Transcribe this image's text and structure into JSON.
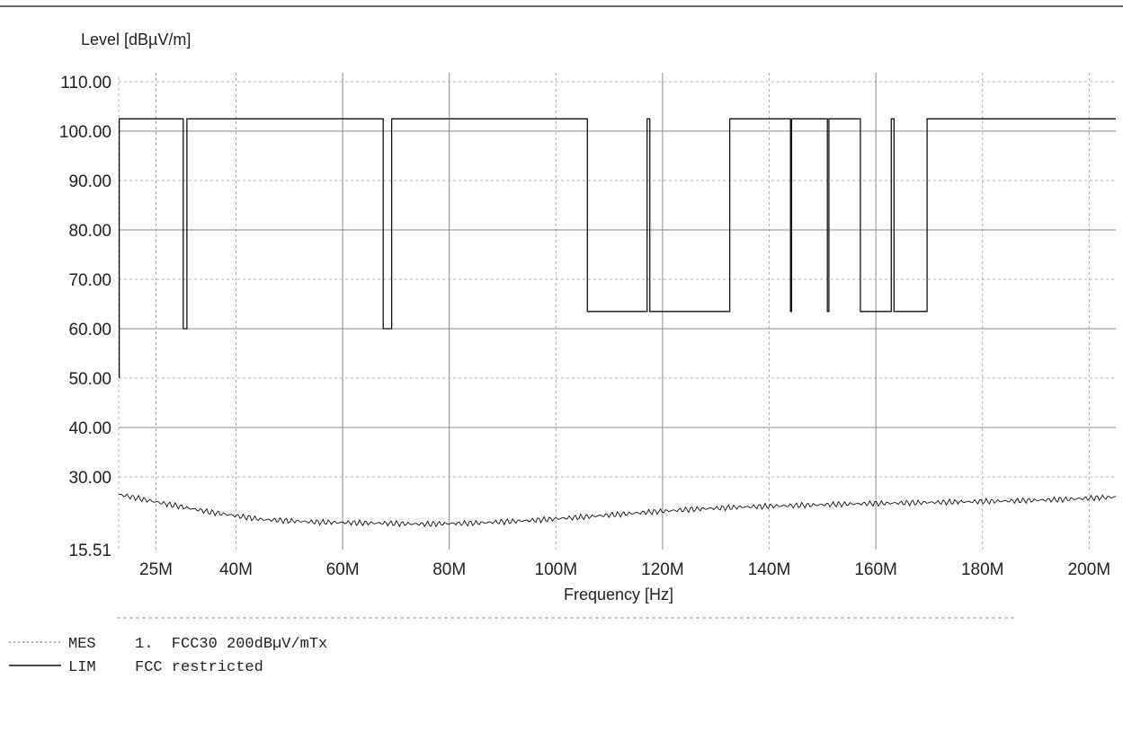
{
  "chart_data": {
    "type": "line",
    "ylabel": "Level [dBµV/m]",
    "xlabel": "Frequency [Hz]",
    "xlim": [
      18,
      205
    ],
    "ylim": [
      15.51,
      110
    ],
    "y_ticks": [
      15.51,
      30,
      40,
      50,
      60,
      70,
      80,
      90,
      100,
      110
    ],
    "y_tick_labels": [
      "15.51",
      "30.00",
      "40.00",
      "50.00",
      "60.00",
      "70.00",
      "80.00",
      "90.00",
      "100.00",
      "110.00"
    ],
    "x_ticks": [
      25,
      40,
      60,
      80,
      100,
      120,
      140,
      160,
      180,
      200
    ],
    "x_tick_labels": [
      "25M",
      "40M",
      "60M",
      "80M",
      "100M",
      "120M",
      "140M",
      "160M",
      "180M",
      "200M"
    ],
    "x_unit": "MHz",
    "grid": true,
    "series": [
      {
        "name": "FCC restricted",
        "style": "solid",
        "color": "#111111",
        "x": [
          18.1,
          18.1,
          18.3,
          18.3,
          30.1,
          30.1,
          30.8,
          30.8,
          67.6,
          67.6,
          69.2,
          69.2,
          69.7,
          69.7,
          105.9,
          105.9,
          117.1,
          117.1,
          117.6,
          117.6,
          132.6,
          132.6,
          144.0,
          144.0,
          144.2,
          144.2,
          150.9,
          150.9,
          151.2,
          151.2,
          157.1,
          157.1,
          162.9,
          162.9,
          163.4,
          163.4,
          169.6,
          169.6,
          205.0
        ],
        "y": [
          50,
          102.5,
          102.5,
          102.5,
          102.5,
          60,
          60,
          102.5,
          102.5,
          60,
          60,
          102.5,
          102.5,
          102.5,
          102.5,
          63.5,
          63.5,
          102.5,
          102.5,
          63.5,
          63.5,
          102.5,
          102.5,
          63.5,
          63.5,
          102.5,
          102.5,
          63.5,
          63.5,
          102.5,
          102.5,
          63.5,
          63.5,
          102.5,
          102.5,
          63.5,
          63.5,
          102.5,
          102.5
        ]
      },
      {
        "name": "1. FCC30 200dBµV/mTx",
        "style": "trace",
        "color": "#111111",
        "x": [
          18,
          25,
          35,
          45,
          55,
          65,
          75,
          85,
          95,
          105,
          115,
          125,
          135,
          145,
          155,
          165,
          175,
          185,
          195,
          205
        ],
        "y": [
          26.5,
          25.0,
          23.0,
          21.5,
          21.0,
          20.8,
          20.6,
          20.8,
          21.3,
          22.0,
          22.8,
          23.5,
          24.0,
          24.3,
          24.6,
          24.8,
          25.0,
          25.2,
          25.5,
          26.0
        ]
      }
    ],
    "legend": [
      {
        "code": "MES",
        "text": "1.  FCC30 200dBµV/mTx",
        "style": "dotted"
      },
      {
        "code": "LIM",
        "text": "FCC restricted",
        "style": "solid"
      }
    ]
  }
}
